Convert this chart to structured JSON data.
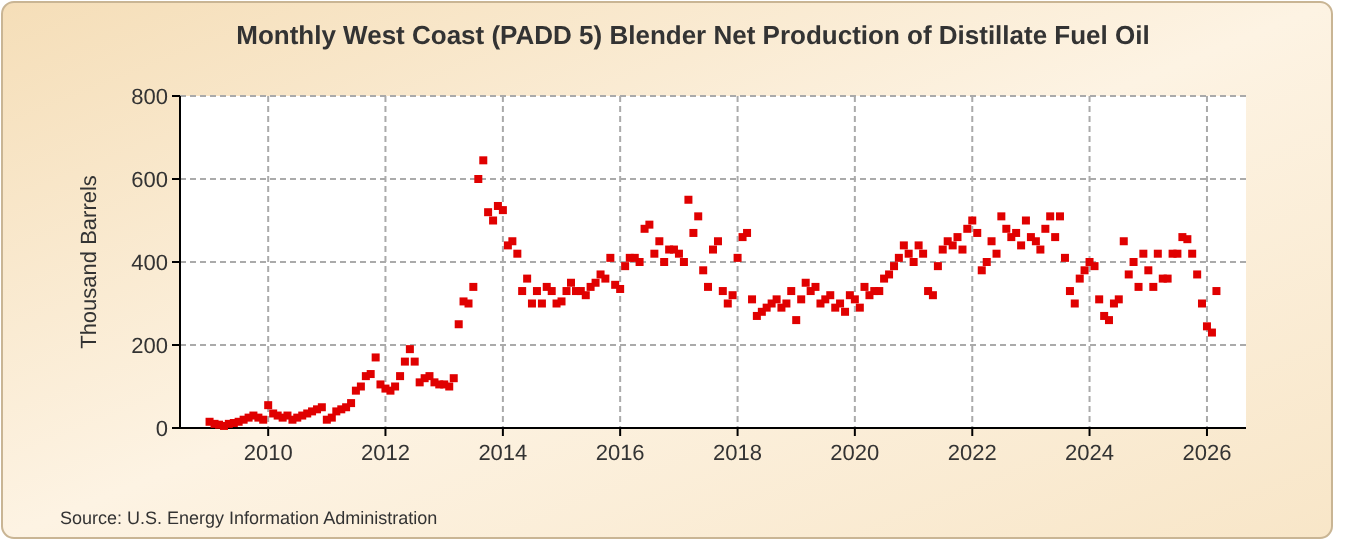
{
  "chart_data": {
    "type": "scatter",
    "title": "Monthly West Coast (PADD 5) Blender Net Production of Distillate Fuel Oil",
    "ylabel": "Thousand Barrels",
    "annotations": [
      "Source: U.S. Energy Information Administration"
    ],
    "x": [
      "2009-01",
      "2009-02",
      "2009-03",
      "2009-04",
      "2009-05",
      "2009-06",
      "2009-07",
      "2009-08",
      "2009-09",
      "2009-10",
      "2009-11",
      "2009-12",
      "2010-01",
      "2010-02",
      "2010-03",
      "2010-04",
      "2010-05",
      "2010-06",
      "2010-07",
      "2010-08",
      "2010-09",
      "2010-10",
      "2010-11",
      "2010-12",
      "2011-01",
      "2011-02",
      "2011-03",
      "2011-04",
      "2011-05",
      "2011-06",
      "2011-07",
      "2011-08",
      "2011-09",
      "2011-10",
      "2011-11",
      "2011-12",
      "2012-01",
      "2012-02",
      "2012-03",
      "2012-04",
      "2012-05",
      "2012-06",
      "2012-07",
      "2012-08",
      "2012-09",
      "2012-10",
      "2012-11",
      "2012-12",
      "2013-01",
      "2013-02",
      "2013-03",
      "2013-04",
      "2013-05",
      "2013-06",
      "2013-07",
      "2013-08",
      "2013-09",
      "2013-10",
      "2013-11",
      "2013-12",
      "2014-01",
      "2014-02",
      "2014-03",
      "2014-04",
      "2014-05",
      "2014-06",
      "2014-07",
      "2014-08",
      "2014-09",
      "2014-10",
      "2014-11",
      "2014-12",
      "2015-01",
      "2015-02",
      "2015-03",
      "2015-04",
      "2015-05",
      "2015-06",
      "2015-07",
      "2015-08",
      "2015-09",
      "2015-10",
      "2015-11",
      "2015-12",
      "2016-01",
      "2016-02",
      "2016-03",
      "2016-04",
      "2016-05",
      "2016-06",
      "2016-07",
      "2016-08",
      "2016-09",
      "2016-10",
      "2016-11",
      "2016-12",
      "2017-01",
      "2017-02",
      "2017-03",
      "2017-04",
      "2017-05",
      "2017-06",
      "2017-07",
      "2017-08",
      "2017-09",
      "2017-10",
      "2017-11",
      "2017-12",
      "2018-01",
      "2018-02",
      "2018-03",
      "2018-04",
      "2018-05",
      "2018-06",
      "2018-07",
      "2018-08",
      "2018-09",
      "2018-10",
      "2018-11",
      "2018-12",
      "2019-01",
      "2019-02",
      "2019-03",
      "2019-04",
      "2019-05",
      "2019-06",
      "2019-07",
      "2019-08",
      "2019-09",
      "2019-10",
      "2019-11",
      "2019-12",
      "2020-01",
      "2020-02",
      "2020-03",
      "2020-04",
      "2020-05",
      "2020-06",
      "2020-07",
      "2020-08",
      "2020-09",
      "2020-10",
      "2020-11",
      "2020-12",
      "2021-01",
      "2021-02",
      "2021-03",
      "2021-04",
      "2021-05",
      "2021-06",
      "2021-07",
      "2021-08",
      "2021-09",
      "2021-10",
      "2021-11",
      "2021-12",
      "2022-01",
      "2022-02",
      "2022-03",
      "2022-04",
      "2022-05",
      "2022-06",
      "2022-07",
      "2022-08",
      "2022-09",
      "2022-10",
      "2022-11",
      "2022-12",
      "2023-01",
      "2023-02",
      "2023-03",
      "2023-04",
      "2023-05",
      "2023-06",
      "2023-07",
      "2023-08",
      "2023-09",
      "2023-10",
      "2023-11",
      "2023-12",
      "2024-01",
      "2024-02",
      "2024-03",
      "2024-04",
      "2024-05",
      "2024-06",
      "2024-07",
      "2024-08",
      "2024-09",
      "2024-10",
      "2024-11",
      "2024-12",
      "2025-01",
      "2025-02",
      "2025-03",
      "2025-04",
      "2025-05",
      "2025-06",
      "2025-07",
      "2025-08",
      "2025-09",
      "2025-10",
      "2025-11",
      "2025-12",
      "2026-01",
      "2026-02",
      "2026-03"
    ],
    "values": [
      15,
      10,
      8,
      5,
      10,
      12,
      15,
      20,
      25,
      30,
      25,
      20,
      55,
      35,
      30,
      25,
      30,
      20,
      25,
      30,
      35,
      40,
      45,
      50,
      20,
      25,
      40,
      45,
      50,
      60,
      90,
      100,
      125,
      130,
      170,
      105,
      95,
      90,
      100,
      125,
      160,
      190,
      160,
      110,
      120,
      125,
      110,
      105,
      105,
      100,
      120,
      250,
      305,
      300,
      340,
      600,
      645,
      520,
      500,
      535,
      525,
      440,
      450,
      420,
      330,
      360,
      300,
      330,
      300,
      340,
      330,
      300,
      305,
      330,
      350,
      330,
      330,
      320,
      340,
      350,
      370,
      360,
      410,
      345,
      335,
      390,
      410,
      410,
      400,
      480,
      490,
      420,
      450,
      400,
      430,
      430,
      420,
      400,
      550,
      470,
      510,
      380,
      340,
      430,
      450,
      330,
      300,
      320,
      410,
      460,
      470,
      310,
      270,
      280,
      290,
      300,
      310,
      290,
      300,
      330,
      260,
      310,
      350,
      330,
      340,
      300,
      310,
      320,
      290,
      300,
      280,
      320,
      310,
      290,
      340,
      320,
      330,
      330,
      360,
      370,
      390,
      410,
      440,
      420,
      400,
      440,
      420,
      330,
      320,
      390,
      430,
      450,
      440,
      460,
      430,
      480,
      500,
      470,
      380,
      400,
      450,
      420,
      510,
      480,
      460,
      470,
      440,
      500,
      460,
      450,
      430,
      480,
      510,
      460,
      510,
      410,
      330,
      300,
      360,
      380,
      400,
      390,
      310,
      270,
      260,
      300,
      310,
      450,
      370,
      400,
      340,
      420,
      380,
      340,
      420,
      360,
      360,
      420,
      420,
      460,
      455,
      420,
      370,
      300,
      245,
      230,
      330
    ],
    "color": "#e00000",
    "marker": "square",
    "grid": true,
    "xlim": [
      "2008-07",
      "2026-09"
    ],
    "xticks": [
      "2010",
      "2012",
      "2014",
      "2016",
      "2018",
      "2020",
      "2022",
      "2024",
      "2026"
    ],
    "ylim": [
      0,
      800
    ],
    "yticks": [
      0,
      200,
      400,
      600,
      800
    ]
  }
}
